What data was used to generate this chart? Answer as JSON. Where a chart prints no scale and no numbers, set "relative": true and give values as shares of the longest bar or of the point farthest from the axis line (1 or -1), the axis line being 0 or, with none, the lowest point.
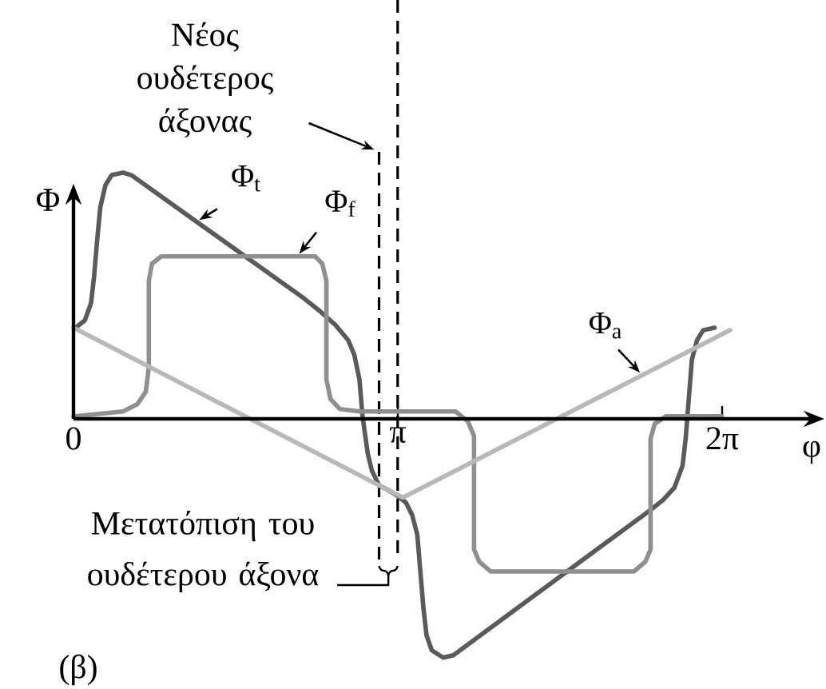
{
  "chart_data": {
    "type": "line",
    "relative": true,
    "xlabel": "φ",
    "ylabel": "Φ",
    "xlim": [
      0,
      7.15
    ],
    "xticks": [
      0,
      {
        "value": 3.1416,
        "label": "π"
      },
      {
        "value": 6.2832,
        "label": "2π"
      }
    ],
    "series": [
      {
        "name": "Φ$_{t}$",
        "color": "#5a5a5a",
        "x": [
          0.02,
          0.11,
          0.17,
          0.2,
          0.23,
          0.26,
          0.31,
          0.37,
          0.48,
          0.56,
          2.23,
          2.38,
          2.54,
          2.66,
          2.72,
          2.77,
          2.8,
          2.85,
          2.89,
          2.96,
          3.05,
          3.13,
          3.22,
          3.28,
          3.33,
          3.36,
          3.39,
          3.42,
          3.47,
          3.58,
          3.68,
          5.59,
          5.71,
          5.82,
          5.9,
          5.93,
          5.96,
          5.99,
          6.04,
          6.1,
          6.21
        ],
        "values": [
          0.37,
          0.4,
          0.47,
          0.58,
          0.73,
          0.86,
          0.95,
          0.99,
          1.0,
          0.99,
          0.49,
          0.44,
          0.38,
          0.32,
          0.26,
          0.16,
          0.01,
          -0.14,
          -0.21,
          -0.27,
          -0.29,
          -0.31,
          -0.34,
          -0.39,
          -0.47,
          -0.62,
          -0.77,
          -0.88,
          -0.94,
          -0.97,
          -0.96,
          -0.37,
          -0.33,
          -0.28,
          -0.19,
          -0.08,
          0.08,
          0.24,
          0.32,
          0.36,
          0.37
        ]
      },
      {
        "name": "Φ$_{f}$",
        "color": "#8f8f8f",
        "x": [
          0,
          0.48,
          0.62,
          0.7,
          0.73,
          0.73,
          0.76,
          0.85,
          2.34,
          2.41,
          2.45,
          2.45,
          2.49,
          2.58,
          2.77,
          3.7,
          3.82,
          3.88,
          3.88,
          3.93,
          4.04,
          5.43,
          5.54,
          5.59,
          5.59,
          5.63,
          5.74,
          6.28
        ],
        "values": [
          0.01,
          0.03,
          0.06,
          0.11,
          0.21,
          0.56,
          0.63,
          0.66,
          0.66,
          0.63,
          0.56,
          0.16,
          0.08,
          0.04,
          0.03,
          0.03,
          -0.01,
          -0.07,
          -0.53,
          -0.58,
          -0.62,
          -0.62,
          -0.58,
          -0.53,
          -0.08,
          -0.02,
          0.01,
          0.01
        ]
      },
      {
        "name": "Φ$_{a}$",
        "color": "#b8b8b8",
        "x": [
          0,
          3.19,
          6.36
        ],
        "values": [
          0.37,
          -0.32,
          0.36
        ]
      }
    ],
    "ref_lines": [
      {
        "axis": "x",
        "value": 2.96,
        "label": "Νέος ουδέτερος άξονας",
        "line_style": "dashed",
        "color": "#000000"
      },
      {
        "axis": "x",
        "value": 3.14,
        "line_style": "dashed",
        "color": "#000000"
      }
    ],
    "annotations": [
      "Μετατόπιση του ουδέτερου άξονα",
      "(β)"
    ]
  }
}
